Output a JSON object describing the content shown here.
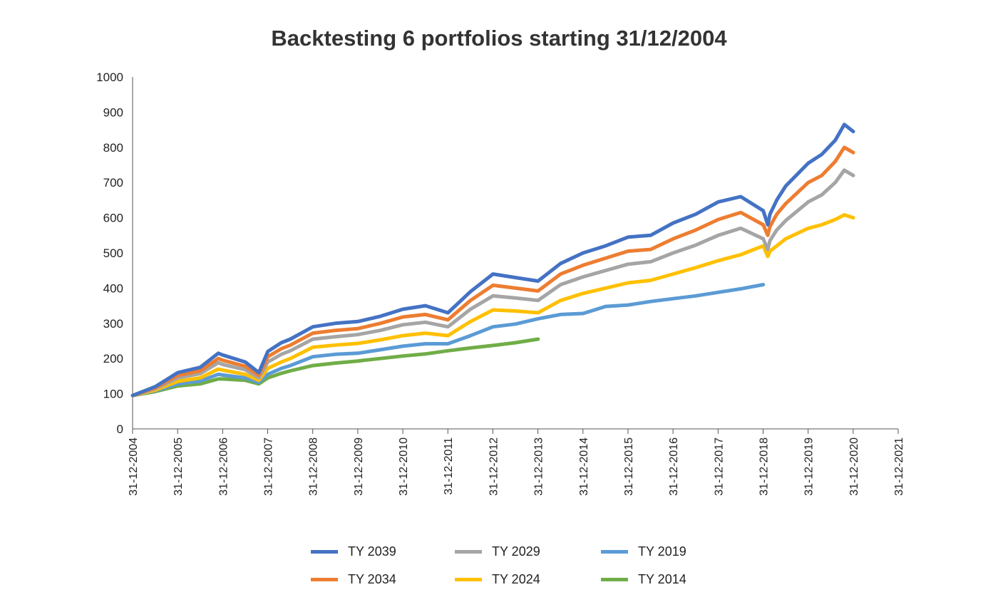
{
  "chart_data": {
    "type": "line",
    "title": "Backtesting 6 portfolios starting 31/12/2004",
    "xlabel": "",
    "ylabel": "",
    "ylim": [
      0,
      1000
    ],
    "yticks": [
      "0",
      "100",
      "200",
      "300",
      "400",
      "500",
      "600",
      "700",
      "800",
      "900",
      "1000"
    ],
    "xticks": [
      "31-12-2004",
      "31-12-2005",
      "31-12-2006",
      "31-12-2007",
      "31-12-2008",
      "31-12-2009",
      "31-12-2010",
      "31-12-2011",
      "31-12-2012",
      "31-12-2013",
      "31-12-2014",
      "31-12-2015",
      "31-12-2016",
      "31-12-2017",
      "31-12-2018",
      "31-12-2019",
      "31-12-2020",
      "31-12-2021"
    ],
    "xlim": [
      2004.997,
      2021.997
    ],
    "grid": false,
    "legend_position": "bottom",
    "series": [
      {
        "name": "TY 2039",
        "color": "#4472c4",
        "x": [
          2005.0,
          2005.5,
          2006.0,
          2006.5,
          2006.9,
          2007.0,
          2007.5,
          2007.8,
          2008.0,
          2008.3,
          2008.5,
          2009.0,
          2009.5,
          2010.0,
          2010.5,
          2011.0,
          2011.5,
          2012.0,
          2012.5,
          2013.0,
          2013.5,
          2014.0,
          2014.5,
          2015.0,
          2015.5,
          2016.0,
          2016.5,
          2017.0,
          2017.5,
          2018.0,
          2018.5,
          2019.0,
          2019.1,
          2019.15,
          2019.3,
          2019.5,
          2020.0,
          2020.3,
          2020.6,
          2020.8,
          2021.0
        ],
        "y": [
          95,
          120,
          160,
          175,
          215,
          210,
          190,
          160,
          220,
          245,
          255,
          290,
          300,
          305,
          320,
          340,
          350,
          330,
          390,
          440,
          430,
          420,
          470,
          500,
          520,
          545,
          550,
          585,
          610,
          645,
          660,
          620,
          580,
          610,
          650,
          690,
          755,
          780,
          820,
          865,
          845
        ]
      },
      {
        "name": "TY 2034",
        "color": "#ed7d31",
        "x": [
          2005.0,
          2005.5,
          2006.0,
          2006.5,
          2006.9,
          2007.0,
          2007.5,
          2007.8,
          2008.0,
          2008.3,
          2008.5,
          2009.0,
          2009.5,
          2010.0,
          2010.5,
          2011.0,
          2011.5,
          2012.0,
          2012.5,
          2013.0,
          2013.5,
          2014.0,
          2014.5,
          2015.0,
          2015.5,
          2016.0,
          2016.5,
          2017.0,
          2017.5,
          2018.0,
          2018.5,
          2019.0,
          2019.1,
          2019.15,
          2019.3,
          2019.5,
          2020.0,
          2020.3,
          2020.6,
          2020.8,
          2021.0
        ],
        "y": [
          95,
          117,
          152,
          165,
          200,
          195,
          178,
          152,
          205,
          228,
          238,
          272,
          280,
          285,
          300,
          318,
          325,
          310,
          365,
          408,
          400,
          392,
          440,
          465,
          485,
          505,
          510,
          540,
          565,
          595,
          615,
          580,
          550,
          575,
          610,
          640,
          700,
          720,
          760,
          800,
          785
        ]
      },
      {
        "name": "TY 2029",
        "color": "#a5a5a5",
        "x": [
          2005.0,
          2005.5,
          2006.0,
          2006.5,
          2006.9,
          2007.0,
          2007.5,
          2007.8,
          2008.0,
          2008.3,
          2008.5,
          2009.0,
          2009.5,
          2010.0,
          2010.5,
          2011.0,
          2011.5,
          2012.0,
          2012.5,
          2013.0,
          2013.5,
          2014.0,
          2014.5,
          2015.0,
          2015.5,
          2016.0,
          2016.5,
          2017.0,
          2017.5,
          2018.0,
          2018.5,
          2019.0,
          2019.1,
          2019.15,
          2019.3,
          2019.5,
          2020.0,
          2020.3,
          2020.6,
          2020.8,
          2021.0
        ],
        "y": [
          95,
          114,
          145,
          157,
          188,
          183,
          168,
          145,
          190,
          212,
          222,
          255,
          262,
          268,
          280,
          296,
          303,
          290,
          340,
          378,
          372,
          365,
          410,
          432,
          450,
          468,
          475,
          500,
          522,
          550,
          570,
          540,
          510,
          535,
          565,
          592,
          645,
          665,
          700,
          735,
          720
        ]
      },
      {
        "name": "TY 2024",
        "color": "#ffc000",
        "x": [
          2005.0,
          2005.5,
          2006.0,
          2006.5,
          2006.9,
          2007.0,
          2007.5,
          2007.8,
          2008.0,
          2008.3,
          2008.5,
          2009.0,
          2009.5,
          2010.0,
          2010.5,
          2011.0,
          2011.5,
          2012.0,
          2012.5,
          2013.0,
          2013.5,
          2014.0,
          2014.5,
          2015.0,
          2015.5,
          2016.0,
          2016.5,
          2017.0,
          2017.5,
          2018.0,
          2018.5,
          2019.0,
          2019.1,
          2019.15,
          2019.3,
          2019.5,
          2020.0,
          2020.3,
          2020.6,
          2020.8,
          2021.0
        ],
        "y": [
          95,
          110,
          135,
          145,
          170,
          167,
          155,
          138,
          172,
          190,
          200,
          232,
          238,
          243,
          253,
          265,
          272,
          265,
          305,
          338,
          335,
          330,
          365,
          385,
          400,
          415,
          422,
          440,
          458,
          478,
          495,
          520,
          490,
          505,
          520,
          540,
          570,
          580,
          595,
          608,
          600
        ]
      },
      {
        "name": "TY 2019",
        "color": "#5b9bd5",
        "x": [
          2005.0,
          2005.5,
          2006.0,
          2006.5,
          2006.9,
          2007.0,
          2007.5,
          2007.8,
          2008.0,
          2008.3,
          2008.5,
          2009.0,
          2009.5,
          2010.0,
          2010.5,
          2011.0,
          2011.5,
          2012.0,
          2012.5,
          2013.0,
          2013.5,
          2014.0,
          2014.5,
          2015.0,
          2015.5,
          2016.0,
          2016.5,
          2017.0,
          2017.5,
          2018.0,
          2018.5,
          2019.0
        ],
        "y": [
          95,
          108,
          128,
          136,
          155,
          153,
          145,
          132,
          155,
          172,
          180,
          205,
          212,
          215,
          225,
          235,
          242,
          242,
          265,
          290,
          298,
          313,
          325,
          328,
          348,
          352,
          362,
          370,
          378,
          388,
          398,
          410
        ]
      },
      {
        "name": "TY 2014",
        "color": "#70ad47",
        "x": [
          2005.0,
          2005.5,
          2006.0,
          2006.5,
          2006.9,
          2007.0,
          2007.5,
          2007.8,
          2008.0,
          2008.3,
          2008.5,
          2009.0,
          2009.5,
          2010.0,
          2010.5,
          2011.0,
          2011.5,
          2012.0,
          2012.5,
          2013.0,
          2013.5,
          2014.0
        ],
        "y": [
          95,
          106,
          122,
          128,
          142,
          142,
          138,
          128,
          145,
          158,
          165,
          180,
          187,
          193,
          200,
          207,
          213,
          222,
          230,
          237,
          245,
          255
        ]
      }
    ]
  }
}
